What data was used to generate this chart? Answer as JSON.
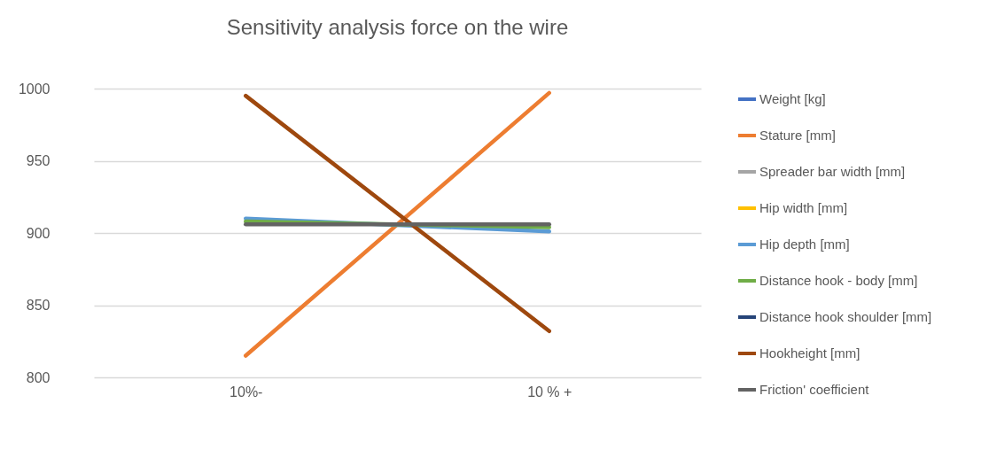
{
  "chart_data": {
    "type": "line",
    "title": "Sensitivity analysis force on the wire",
    "categories": [
      "10%-",
      "10 % +"
    ],
    "series": [
      {
        "name": "Weight [kg]",
        "color": "#4472c4",
        "values": [
          null,
          null
        ]
      },
      {
        "name": "Stature [mm]",
        "color": "#ed7d31",
        "values": [
          815,
          997
        ]
      },
      {
        "name": "Spreader bar width [mm]",
        "color": "#a5a5a5",
        "values": [
          null,
          null
        ]
      },
      {
        "name": "Hip width [mm]",
        "color": "#ffc000",
        "values": [
          null,
          null
        ]
      },
      {
        "name": "Hip depth [mm]",
        "color": "#5b9bd5",
        "values": [
          910,
          901
        ]
      },
      {
        "name": "Distance hook - body [mm]",
        "color": "#70ad47",
        "values": [
          908,
          904
        ]
      },
      {
        "name": "Distance hook shoulder [mm]",
        "color": "#264478",
        "values": [
          null,
          null
        ]
      },
      {
        "name": "Hookheight [mm]",
        "color": "#9e480e",
        "values": [
          995,
          832
        ]
      },
      {
        "name": "Friction' coefficient",
        "color": "#636363",
        "values": [
          906,
          906
        ]
      }
    ],
    "ylim": [
      800,
      1000
    ],
    "yticks": [
      800,
      850,
      900,
      950,
      1000
    ],
    "grid": "y",
    "legend": "right",
    "marker": "none"
  }
}
